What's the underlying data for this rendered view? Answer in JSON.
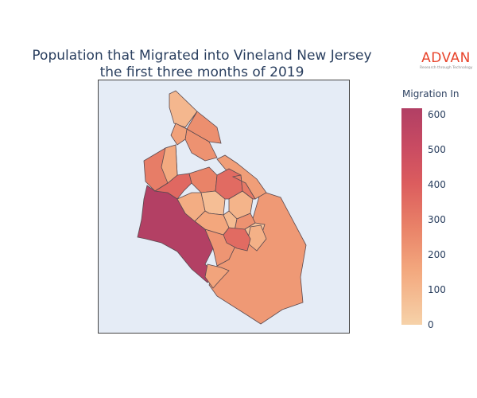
{
  "title_line1": "Population that Migrated into Vineland New Jersey",
  "title_line2": "the first three months of 2019",
  "logo": {
    "name": "ADVAN",
    "tagline": "Research through Technology"
  },
  "colorbar": {
    "title": "Migration In",
    "ticks": [
      "600",
      "500",
      "400",
      "300",
      "200",
      "100",
      "0"
    ],
    "colors": [
      "#f6d2a9",
      "#f3a87e",
      "#e98268",
      "#dc5d5e",
      "#c94b62",
      "#b13f64"
    ]
  },
  "map": {
    "background": "#e5ecf6",
    "border": "#444444",
    "region": "Vineland, New Jersey"
  },
  "chart_data": {
    "type": "choropleth",
    "title": "Population that Migrated into Vineland New Jersey the first three months of 2019",
    "colorbar_title": "Migration In",
    "range": [
      0,
      630
    ],
    "tick_values": [
      0,
      100,
      200,
      300,
      400,
      500,
      600
    ],
    "regions": [
      {
        "id": "southwest-large",
        "value": 620
      },
      {
        "id": "southeast-large",
        "value": 175
      },
      {
        "id": "northeast-upper",
        "value": 160
      },
      {
        "id": "northwest-upper",
        "value": 270
      },
      {
        "id": "central-east",
        "value": 300
      },
      {
        "id": "south-center",
        "value": 190
      },
      {
        "id": "south-bay",
        "value": 140
      },
      {
        "id": "north-tip",
        "value": 80
      },
      {
        "id": "north-center-a",
        "value": 200
      },
      {
        "id": "north-center-b",
        "value": 210
      },
      {
        "id": "north-center-c",
        "value": 150
      },
      {
        "id": "central-a",
        "value": 340
      },
      {
        "id": "central-b",
        "value": 250
      },
      {
        "id": "central-c",
        "value": 110
      },
      {
        "id": "central-d",
        "value": 60
      },
      {
        "id": "central-e",
        "value": 330
      },
      {
        "id": "central-f",
        "value": 130
      },
      {
        "id": "central-g",
        "value": 90
      },
      {
        "id": "central-h",
        "value": 280
      },
      {
        "id": "central-i",
        "value": 70
      },
      {
        "id": "central-j",
        "value": 200
      },
      {
        "id": "central-k",
        "value": 50
      },
      {
        "id": "east-small",
        "value": 100
      },
      {
        "id": "east-mid",
        "value": 330
      },
      {
        "id": "west-small",
        "value": 120
      }
    ]
  }
}
